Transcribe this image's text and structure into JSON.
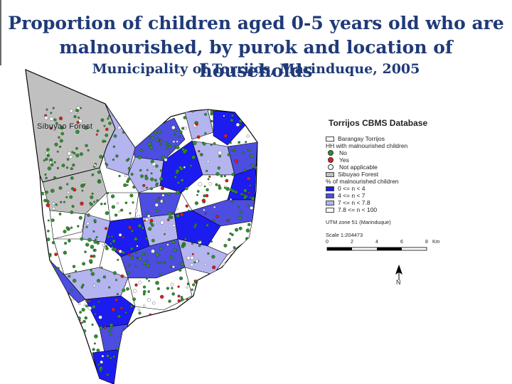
{
  "title_line1": "Proportion of children aged 0-5 years old who are",
  "title_line2": "malnourished,  by purok and location of households",
  "subtitle": "Municipality of Torrijos, Marinduque, 2005",
  "map": {
    "forest_label": "Sibuyao Forest",
    "colors": {
      "forest": "#c0c0c0",
      "class1": "#1c1cf0",
      "class2": "#4d4de0",
      "class3": "#b4b4ee",
      "class4": "#ffffff",
      "households": "#2f8f2f",
      "boundary": "#000000"
    }
  },
  "legend": {
    "title": "Torrijos CBMS Database",
    "items": [
      {
        "label": "Barangay Torrijos",
        "type": "swatch",
        "color": "#ffffff"
      },
      {
        "label": "HH with malnourished children",
        "type": "heading"
      },
      {
        "label": "No",
        "type": "dot",
        "color": "#2f8f2f"
      },
      {
        "label": "Yes",
        "type": "dot",
        "color": "#e02020"
      },
      {
        "label": "Not applicable",
        "type": "dot",
        "color": "#ffffff"
      },
      {
        "label": "Sibuyao Forest",
        "type": "swatch",
        "color": "#c0c0c0"
      },
      {
        "label": "% of malnourished children",
        "type": "heading"
      },
      {
        "label": "0 <= n < 4",
        "type": "swatch",
        "color": "#1c1cf0"
      },
      {
        "label": "4 <= n < 7",
        "type": "swatch",
        "color": "#4d4de0"
      },
      {
        "label": "7 <= n < 7.8",
        "type": "swatch",
        "color": "#b4b4ee"
      },
      {
        "label": "7.8 <= n < 100",
        "type": "swatch",
        "color": "#ffffff"
      }
    ],
    "utm": "UTM zone 51 (Marinduque)",
    "scale": "Scale 1:204473",
    "scalebar_ticks": [
      "0",
      "2",
      "4",
      "6",
      "8"
    ],
    "scalebar_unit": "Km",
    "north": "N"
  }
}
